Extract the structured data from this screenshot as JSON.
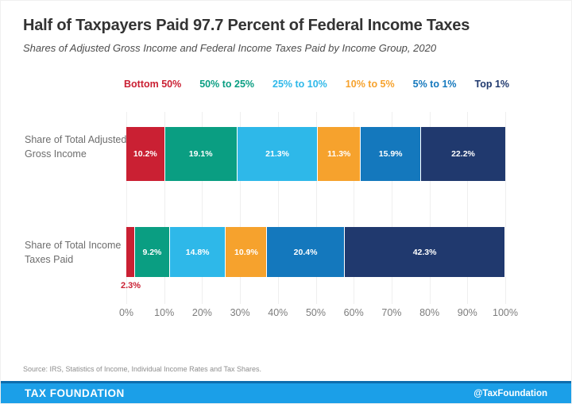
{
  "header": {
    "title": "Half of Taxpayers Paid 97.7 Percent of Federal Income Taxes",
    "subtitle": "Shares of Adjusted Gross Income and Federal Income Taxes Paid by Income Group, 2020"
  },
  "legend": {
    "items": [
      {
        "label": "Bottom 50%",
        "color": "#CA2033"
      },
      {
        "label": "50% to 25%",
        "color": "#0A9E82"
      },
      {
        "label": "25% to 10%",
        "color": "#2EB8E9"
      },
      {
        "label": "10% to 5%",
        "color": "#F6A22D"
      },
      {
        "label": "5% to 1%",
        "color": "#1478BD"
      },
      {
        "label": "Top 1%",
        "color": "#20396E"
      }
    ]
  },
  "chart_data": {
    "type": "bar",
    "orientation": "horizontal",
    "stacked": true,
    "unit": "%",
    "grid": true,
    "legend_position": "top",
    "xlim": [
      0,
      100
    ],
    "x_ticks": [
      "0%",
      "10%",
      "20%",
      "30%",
      "40%",
      "50%",
      "60%",
      "70%",
      "80%",
      "90%",
      "100%"
    ],
    "groups": [
      "Bottom 50%",
      "50% to 25%",
      "25% to 10%",
      "10% to 5%",
      "5% to 1%",
      "Top 1%"
    ],
    "series": [
      {
        "name": "Share of Total Adjusted Gross Income",
        "segments": [
          {
            "group": "Bottom 50%",
            "value": 10.2,
            "label": "10.2%",
            "label_position": "inside"
          },
          {
            "group": "50% to 25%",
            "value": 19.1,
            "label": "19.1%",
            "label_position": "inside"
          },
          {
            "group": "25% to 10%",
            "value": 21.3,
            "label": "21.3%",
            "label_position": "inside"
          },
          {
            "group": "10% to 5%",
            "value": 11.3,
            "label": "11.3%",
            "label_position": "inside"
          },
          {
            "group": "5% to 1%",
            "value": 15.9,
            "label": "15.9%",
            "label_position": "inside"
          },
          {
            "group": "Top 1%",
            "value": 22.2,
            "label": "22.2%",
            "label_position": "inside"
          }
        ]
      },
      {
        "name": "Share of Total Income Taxes Paid",
        "segments": [
          {
            "group": "Bottom 50%",
            "value": 2.3,
            "label": "2.3%",
            "label_position": "below"
          },
          {
            "group": "50% to 25%",
            "value": 9.2,
            "label": "9.2%",
            "label_position": "inside"
          },
          {
            "group": "25% to 10%",
            "value": 14.8,
            "label": "14.8%",
            "label_position": "inside"
          },
          {
            "group": "10% to 5%",
            "value": 10.9,
            "label": "10.9%",
            "label_position": "inside"
          },
          {
            "group": "5% to 1%",
            "value": 20.4,
            "label": "20.4%",
            "label_position": "inside"
          },
          {
            "group": "Top 1%",
            "value": 42.3,
            "label": "42.3%",
            "label_position": "inside"
          }
        ]
      }
    ]
  },
  "source": "Source: IRS, Statistics of Income, Individual Income Rates and Tax Shares.",
  "footer": {
    "brand": "TAX FOUNDATION",
    "handle": "@TaxFoundation",
    "background": "#1B9FE8",
    "top_line_color": "#0D6CAD"
  }
}
